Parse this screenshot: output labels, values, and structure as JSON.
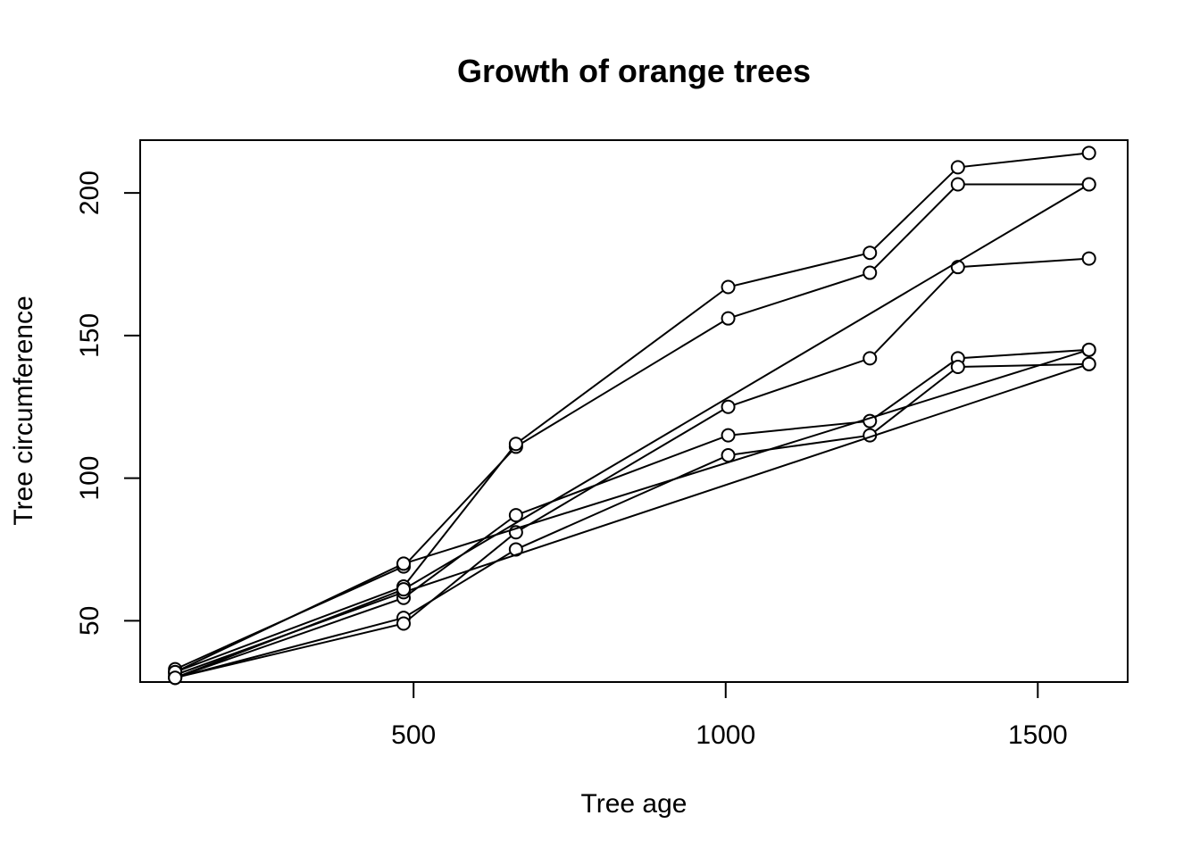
{
  "chart_data": {
    "type": "line",
    "title": "Growth of orange trees",
    "xlabel": "Tree age",
    "ylabel": "Tree circumference",
    "xlim": [
      62,
      1644
    ],
    "ylim": [
      28.5,
      218.5
    ],
    "xticks": [
      500,
      1000,
      1500
    ],
    "yticks": [
      50,
      100,
      150,
      200
    ],
    "x_tick_labels": [
      "500",
      "1000",
      "1500"
    ],
    "y_tick_labels": [
      "50",
      "100",
      "150",
      "200"
    ],
    "grid": false,
    "legend": "none",
    "marker": "open-circle",
    "line_color": "#000000",
    "series": [
      {
        "x": [
          118,
          484,
          664,
          1004,
          1231,
          1372,
          1582
        ],
        "y": [
          30,
          58,
          87,
          115,
          120,
          142,
          145
        ]
      },
      {
        "x": [
          118,
          484,
          664,
          1004,
          1231,
          1372,
          1582
        ],
        "y": [
          33,
          69,
          111,
          156,
          172,
          203,
          203
        ]
      },
      {
        "x": [
          118,
          484,
          664,
          1004,
          1231,
          1372,
          1582
        ],
        "y": [
          30,
          51,
          75,
          108,
          115,
          139,
          140
        ]
      },
      {
        "x": [
          118,
          484,
          664,
          1004,
          1231,
          1372,
          1582
        ],
        "y": [
          32,
          62,
          112,
          167,
          179,
          209,
          214
        ]
      },
      {
        "x": [
          118,
          484,
          664,
          1004,
          1231,
          1372,
          1582
        ],
        "y": [
          30,
          49,
          81,
          125,
          142,
          174,
          177
        ]
      },
      {
        "x": [
          118,
          484,
          1582
        ],
        "y": [
          31,
          60,
          140
        ]
      },
      {
        "x": [
          118,
          484,
          1582
        ],
        "y": [
          32,
          70,
          145
        ]
      },
      {
        "x": [
          118,
          484,
          1582
        ],
        "y": [
          30,
          61,
          203
        ]
      }
    ]
  }
}
